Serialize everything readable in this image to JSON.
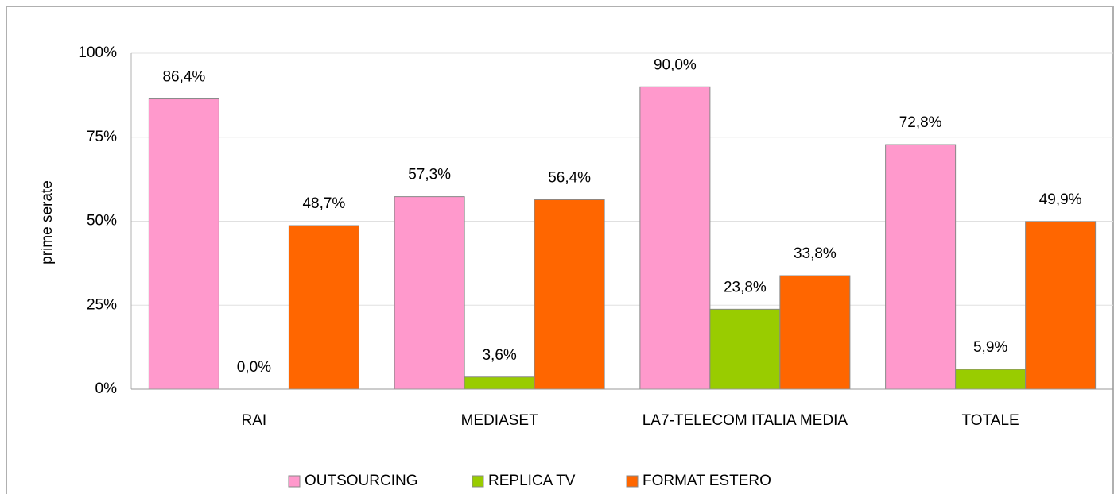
{
  "chart_data": {
    "type": "bar",
    "y_label": "prime serate",
    "categories": [
      "RAI",
      "MEDIASET",
      "LA7-TELECOM ITALIA MEDIA",
      "TOTALE"
    ],
    "series": [
      {
        "name": "OUTSOURCING",
        "color": "#ff99cc",
        "values": [
          86.4,
          57.3,
          90.0,
          72.8
        ],
        "value_labels": [
          "86,4%",
          "57,3%",
          "90,0%",
          "72,8%"
        ]
      },
      {
        "name": "REPLICA TV",
        "color": "#99cc00",
        "values": [
          0.0,
          3.6,
          23.8,
          5.9
        ],
        "value_labels": [
          "0,0%",
          "3,6%",
          "23,8%",
          "5,9%"
        ]
      },
      {
        "name": "FORMAT ESTERO",
        "color": "#ff6600",
        "values": [
          48.7,
          56.4,
          33.8,
          49.9
        ],
        "value_labels": [
          "48,7%",
          "56,4%",
          "33,8%",
          "49,9%"
        ]
      }
    ],
    "ylim": [
      0,
      100
    ],
    "yticks": [
      {
        "value": 0,
        "label": "0%"
      },
      {
        "value": 25,
        "label": "25%"
      },
      {
        "value": 50,
        "label": "50%"
      },
      {
        "value": 75,
        "label": "75%"
      },
      {
        "value": 100,
        "label": "100%"
      }
    ],
    "grid": true,
    "legend": "bottom"
  }
}
